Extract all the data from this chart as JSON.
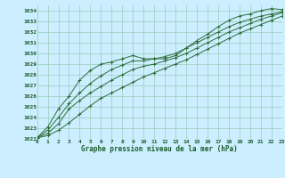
{
  "title": "Graphe pression niveau de la mer (hPa)",
  "background_color": "#cceeff",
  "grid_color": "#99ccbb",
  "line_color": "#2d6e3a",
  "xlim": [
    0,
    23
  ],
  "ylim": [
    1022,
    1034.5
  ],
  "yticks": [
    1022,
    1023,
    1024,
    1025,
    1026,
    1027,
    1028,
    1029,
    1030,
    1031,
    1032,
    1033,
    1034
  ],
  "xticks": [
    0,
    1,
    2,
    3,
    4,
    5,
    6,
    7,
    8,
    9,
    10,
    11,
    12,
    13,
    14,
    15,
    16,
    17,
    18,
    19,
    20,
    21,
    22,
    23
  ],
  "series": [
    [
      1022.1,
      1023.1,
      1024.8,
      1026.0,
      1027.5,
      1028.4,
      1029.0,
      1029.2,
      1029.5,
      1029.8,
      1029.5,
      1029.5,
      1029.5,
      1029.8,
      1030.5,
      1031.2,
      1031.8,
      1032.5,
      1033.1,
      1033.5,
      1033.7,
      1034.0,
      1034.2,
      1034.1
    ],
    [
      1022.1,
      1022.8,
      1024.0,
      1025.3,
      1026.3,
      1027.2,
      1027.9,
      1028.5,
      1028.9,
      1029.3,
      1029.3,
      1029.5,
      1029.7,
      1030.0,
      1030.5,
      1031.0,
      1031.5,
      1032.0,
      1032.5,
      1032.9,
      1033.2,
      1033.5,
      1033.7,
      1033.9
    ],
    [
      1022.1,
      1022.5,
      1023.4,
      1024.8,
      1025.6,
      1026.3,
      1026.9,
      1027.5,
      1028.0,
      1028.5,
      1028.8,
      1029.0,
      1029.3,
      1029.6,
      1030.0,
      1030.5,
      1031.0,
      1031.5,
      1032.0,
      1032.4,
      1032.8,
      1033.2,
      1033.5,
      1033.8
    ],
    [
      1022.1,
      1022.3,
      1022.8,
      1023.5,
      1024.3,
      1025.1,
      1025.8,
      1026.3,
      1026.8,
      1027.3,
      1027.8,
      1028.2,
      1028.6,
      1029.0,
      1029.4,
      1029.9,
      1030.4,
      1030.9,
      1031.4,
      1031.9,
      1032.3,
      1032.7,
      1033.1,
      1033.5
    ]
  ]
}
